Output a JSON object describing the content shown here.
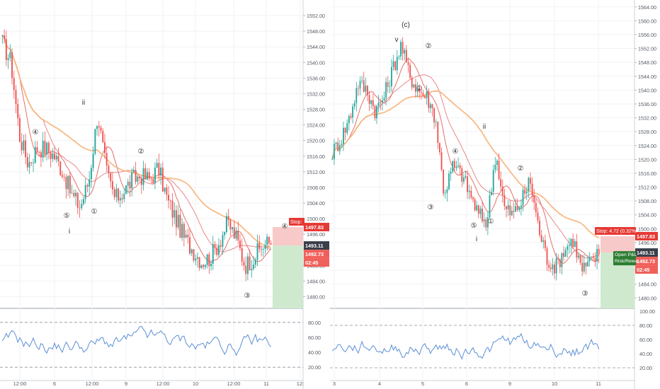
{
  "colors": {
    "candle_up": "#26a69a",
    "candle_down": "#ef5350",
    "ma_fast": "#e0605a",
    "ma_mid": "#e87c7c",
    "ma_slow": "#f7b27a",
    "rsi_line": "#5b8fd6",
    "stop_zone": "#f8c9c9",
    "target_zone": "#cfe9cf",
    "price_tag_dark": "#3a3f4a",
    "price_tag_red": "#e53935",
    "price_tag_pink": "#f0605a",
    "wave_label": "#333333"
  },
  "chart_data": [
    {
      "type": "candlestick",
      "title": "",
      "price_axis": {
        "ticks": [
          "1552.00",
          "1548.00",
          "1544.00",
          "1540.00",
          "1536.00",
          "1532.00",
          "1528.00",
          "1524.00",
          "1520.00",
          "1516.00",
          "1512.00",
          "1508.00",
          "1504.00",
          "1500.00",
          "1496.00",
          "1492.00",
          "1488.00",
          "1484.00",
          "1480.00"
        ],
        "ylim": [
          1477,
          1556
        ]
      },
      "time_axis": {
        "ticks": [
          "12:00",
          "6",
          "12:00",
          "9",
          "12:00",
          "10",
          "12:00",
          "11",
          "12:"
        ]
      },
      "price_labels": {
        "stop": "Stop:",
        "stop_price": "1497.83",
        "last_price": "1493.11",
        "entry_price": "1492.73",
        "countdown": "02:45"
      },
      "wave_labels": [
        "④",
        "ii",
        "②",
        "⑤",
        "①",
        "i",
        "③",
        "④"
      ],
      "close_path": [
        1545,
        1540,
        1521,
        1514,
        1518,
        1518,
        1516,
        1512,
        1506,
        1503,
        1510,
        1527,
        1512,
        1505,
        1507,
        1510,
        1511,
        1510,
        1513,
        1505,
        1500,
        1495,
        1492,
        1489,
        1490,
        1494,
        1499,
        1495,
        1488,
        1490,
        1493,
        1494
      ],
      "indicator": {
        "name": "RSI",
        "ticks": [
          "80.00",
          "60.00",
          "40.00",
          "20.00"
        ],
        "ylim": [
          5,
          95
        ],
        "levels": [
          80,
          20
        ]
      }
    },
    {
      "type": "candlestick",
      "title": "",
      "price_axis": {
        "ticks": [
          "1564.00",
          "1560.00",
          "1556.00",
          "1552.00",
          "1548.00",
          "1544.00",
          "1540.00",
          "1536.00",
          "1532.00",
          "1528.00",
          "1524.00",
          "1520.00",
          "1516.00",
          "1512.00",
          "1508.00",
          "1504.00",
          "1500.00",
          "1496.00",
          "1492.00",
          "1488.00",
          "1484.00",
          "1480.00"
        ],
        "ylim": [
          1477,
          1566
        ]
      },
      "time_axis": {
        "ticks": [
          "3",
          "4",
          "5",
          "6",
          "9",
          "10",
          "11"
        ]
      },
      "price_labels": {
        "stop": "Stop: 4.72 (0.32%",
        "stop_price": "1497.83",
        "last_price": "1493.11",
        "entry_price": "1492.73",
        "countdown": "02:45",
        "open_pnl": "Open P&L",
        "risk_reward": "Risk/Rewa"
      },
      "wave_labels": [
        "(c)",
        "v",
        "②",
        "①",
        "④",
        "③",
        "ii",
        "②",
        "⑤",
        "①",
        "i",
        "③"
      ],
      "close_path": [
        1522,
        1526,
        1532,
        1542,
        1540,
        1534,
        1538,
        1546,
        1553,
        1544,
        1540,
        1538,
        1532,
        1510,
        1518,
        1516,
        1510,
        1504,
        1502,
        1522,
        1506,
        1504,
        1508,
        1514,
        1500,
        1491,
        1489,
        1494,
        1497,
        1488,
        1490,
        1493
      ],
      "indicator": {
        "name": "RSI",
        "ticks": [
          "100.00",
          "80.00",
          "60.00",
          "40.00",
          "20.00"
        ],
        "ylim": [
          5,
          100
        ],
        "levels": [
          80,
          20
        ]
      }
    }
  ]
}
